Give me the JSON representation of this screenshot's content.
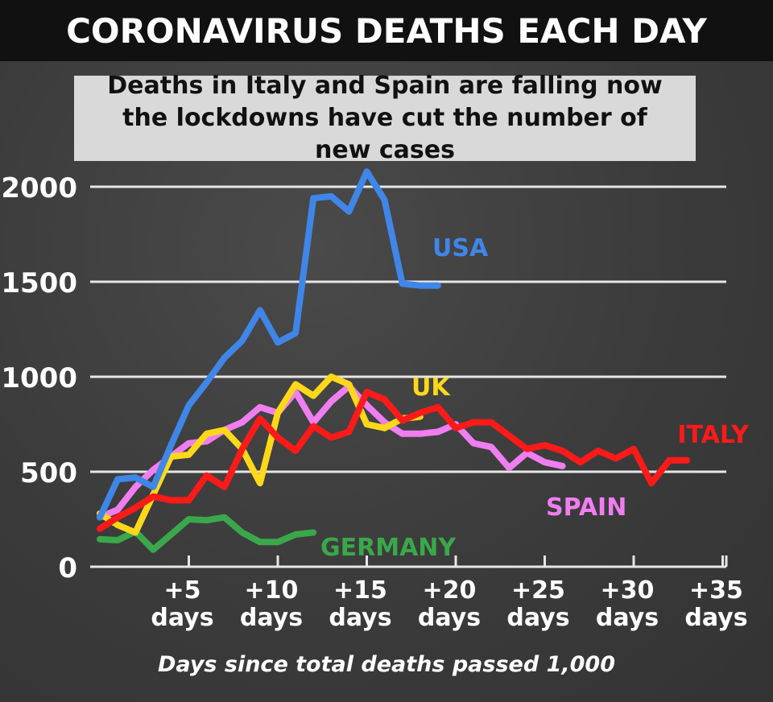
{
  "title": "CORONAVIRUS DEATHS EACH DAY",
  "subtitle": "Deaths in Italy and Spain are falling now the lockdowns have cut the number of new cases",
  "chart_data": {
    "type": "line",
    "xlabel": "Days since total deaths passed 1,000",
    "ylabel": "",
    "xlim": [
      0,
      36
    ],
    "ylim": [
      0,
      2000
    ],
    "grid": true,
    "y_ticks": [
      {
        "value": 0,
        "label": "0"
      },
      {
        "value": 500,
        "label": "500"
      },
      {
        "value": 1000,
        "label": "1000"
      },
      {
        "value": 1500,
        "label": "1500"
      },
      {
        "value": 2000,
        "label": "2000"
      }
    ],
    "x_ticks": [
      {
        "value": 5,
        "line1": "+5",
        "line2": "days"
      },
      {
        "value": 10,
        "line1": "+10",
        "line2": "days"
      },
      {
        "value": 15,
        "line1": "+15",
        "line2": "days"
      },
      {
        "value": 20,
        "line1": "+20",
        "line2": "days"
      },
      {
        "value": 25,
        "line1": "+25",
        "line2": "days"
      },
      {
        "value": 30,
        "line1": "+30",
        "line2": "days"
      },
      {
        "value": 35,
        "line1": "+35",
        "line2": "days"
      }
    ],
    "series": [
      {
        "name": "GERMANY",
        "color": "#3aa84a",
        "x": [
          0,
          1,
          2,
          3,
          4,
          5,
          6,
          7,
          8,
          9,
          10,
          11,
          12
        ],
        "y": [
          145,
          140,
          185,
          90,
          170,
          250,
          245,
          260,
          180,
          130,
          130,
          170,
          180
        ]
      },
      {
        "name": "SPAIN",
        "color": "#f07ef0",
        "x": [
          0,
          1,
          2,
          3,
          4,
          5,
          6,
          7,
          8,
          9,
          10,
          11,
          12,
          13,
          14,
          15,
          16,
          17,
          18,
          19,
          20,
          21,
          22,
          23,
          24,
          25,
          26
        ],
        "y": [
          260,
          300,
          420,
          510,
          580,
          650,
          660,
          720,
          760,
          840,
          810,
          920,
          760,
          870,
          950,
          850,
          760,
          700,
          700,
          710,
          750,
          650,
          630,
          520,
          600,
          550,
          530
        ],
        "label_x": 25.8,
        "label_y": 320
      },
      {
        "name": "UK",
        "color": "#ffd81a",
        "x": [
          0,
          1,
          2,
          3,
          4,
          5,
          6,
          7,
          8,
          9,
          10,
          11,
          12,
          13,
          14,
          15,
          16,
          17,
          18
        ],
        "y": [
          280,
          220,
          180,
          380,
          580,
          590,
          700,
          720,
          620,
          440,
          810,
          960,
          900,
          1000,
          960,
          750,
          730,
          780,
          790
        ]
      },
      {
        "name": "ITALY",
        "color": "#ff1a1a",
        "x": [
          0,
          1,
          2,
          3,
          4,
          5,
          6,
          7,
          8,
          9,
          10,
          11,
          12,
          13,
          14,
          15,
          16,
          17,
          18,
          19,
          20,
          21,
          22,
          23,
          24,
          25,
          26,
          27,
          28,
          29,
          30,
          31,
          32,
          33
        ],
        "y": [
          200,
          260,
          310,
          370,
          350,
          350,
          480,
          420,
          620,
          780,
          680,
          610,
          740,
          680,
          710,
          920,
          880,
          770,
          810,
          840,
          730,
          760,
          760,
          690,
          620,
          640,
          610,
          550,
          610,
          570,
          620,
          440,
          560,
          560
        ]
      },
      {
        "name": "USA",
        "color": "#3f86e8",
        "x": [
          0,
          1,
          2,
          3,
          4,
          5,
          6,
          7,
          8,
          9,
          10,
          11,
          12,
          13,
          14,
          15,
          16,
          17,
          18,
          19
        ],
        "y": [
          260,
          460,
          470,
          420,
          640,
          850,
          970,
          1100,
          1190,
          1350,
          1180,
          1230,
          1940,
          1950,
          1870,
          2080,
          1930,
          1490,
          1480,
          1480
        ]
      }
    ]
  }
}
